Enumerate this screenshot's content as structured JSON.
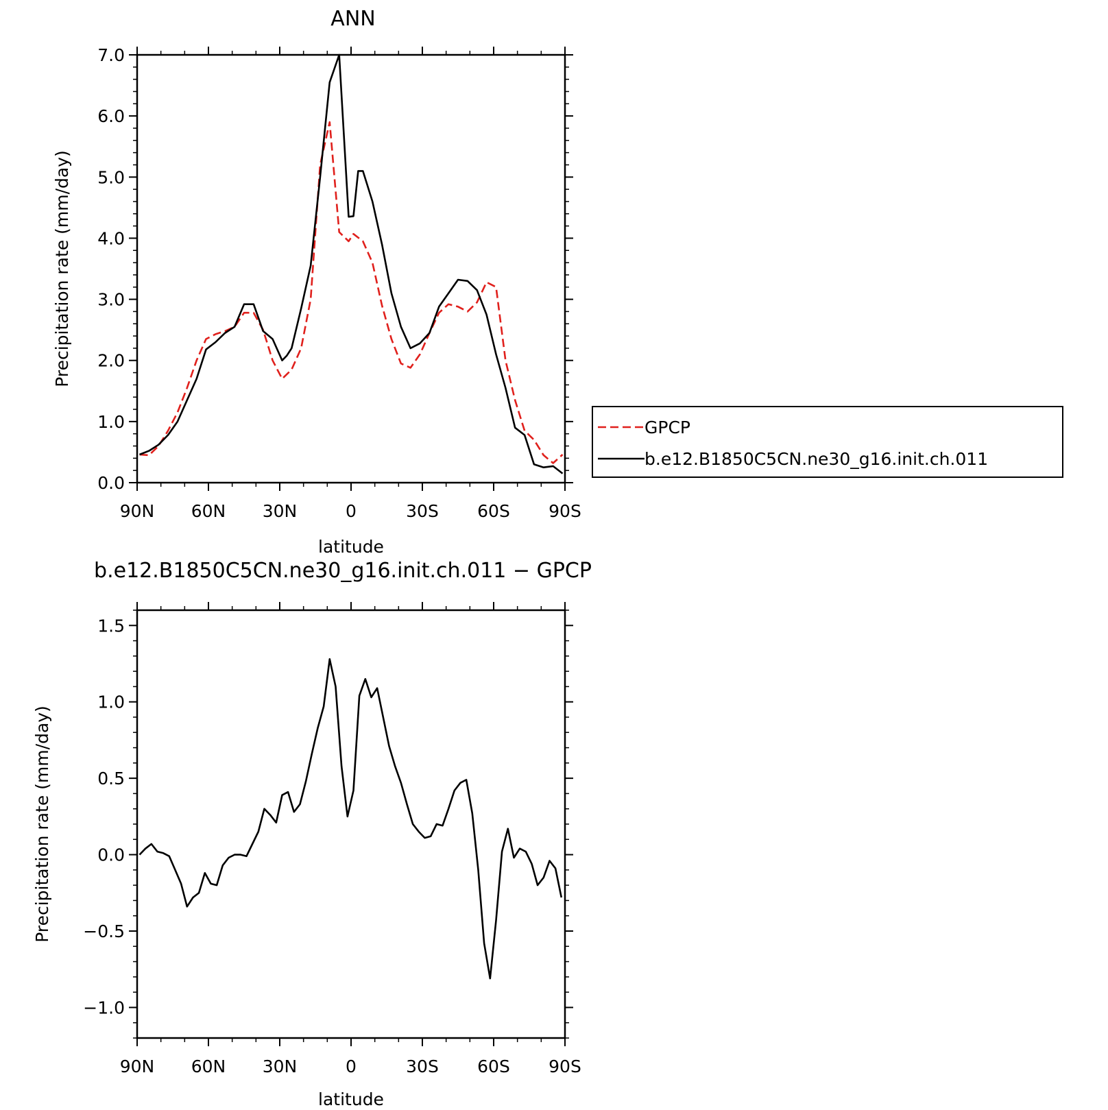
{
  "chart_data": [
    {
      "type": "line",
      "title": "ANN",
      "xlabel": "latitude",
      "ylabel": "Precipitation rate (mm/day)",
      "xlim": [
        90,
        -90
      ],
      "ylim": [
        0.0,
        7.0
      ],
      "x_ticks": [
        {
          "value": 90,
          "label": "90N"
        },
        {
          "value": 60,
          "label": "60N"
        },
        {
          "value": 30,
          "label": "30N"
        },
        {
          "value": 0,
          "label": "0"
        },
        {
          "value": -30,
          "label": "30S"
        },
        {
          "value": -60,
          "label": "60S"
        },
        {
          "value": -90,
          "label": "90S"
        }
      ],
      "y_ticks": [
        {
          "value": 0.0,
          "label": "0.0"
        },
        {
          "value": 1.0,
          "label": "1.0"
        },
        {
          "value": 2.0,
          "label": "2.0"
        },
        {
          "value": 3.0,
          "label": "3.0"
        },
        {
          "value": 4.0,
          "label": "4.0"
        },
        {
          "value": 5.0,
          "label": "5.0"
        },
        {
          "value": 6.0,
          "label": "6.0"
        },
        {
          "value": 7.0,
          "label": "7.0"
        }
      ],
      "legend_position": "right",
      "series": [
        {
          "name": "GPCP",
          "color": "#e0201c",
          "style": "dashed",
          "x": [
            89,
            85,
            81,
            77,
            73,
            69,
            65,
            61,
            57,
            53,
            49,
            45,
            41,
            37,
            33,
            29,
            25,
            21,
            17,
            13,
            9,
            5,
            1,
            -1,
            -5,
            -9,
            -13,
            -17,
            -21,
            -25,
            -29,
            -33,
            -37,
            -41,
            -45,
            -49,
            -53,
            -57,
            -61,
            -65,
            -69,
            -73,
            -77,
            -81,
            -85,
            -89
          ],
          "values": [
            0.46,
            0.45,
            0.6,
            0.85,
            1.15,
            1.55,
            2.0,
            2.35,
            2.43,
            2.48,
            2.55,
            2.78,
            2.78,
            2.5,
            2.0,
            1.7,
            1.85,
            2.2,
            3.0,
            5.2,
            5.9,
            4.1,
            3.95,
            4.07,
            3.95,
            3.6,
            2.9,
            2.35,
            1.95,
            1.88,
            2.1,
            2.45,
            2.78,
            2.92,
            2.88,
            2.8,
            2.95,
            3.28,
            3.2,
            2.0,
            1.35,
            0.85,
            0.7,
            0.45,
            0.32,
            0.46
          ]
        },
        {
          "name": "b.e12.B1850C5CN.ne30_g16.init.ch.011",
          "color": "#000000",
          "style": "solid",
          "x": [
            89,
            85,
            81,
            77,
            73,
            69,
            65,
            61,
            57,
            53,
            49,
            45,
            41,
            37,
            33,
            29,
            27,
            25,
            21,
            17,
            13,
            9,
            5,
            1,
            -1,
            -3,
            -5,
            -9,
            -13,
            -17,
            -21,
            -25,
            -29,
            -33,
            -37,
            -41,
            -45,
            -49,
            -53,
            -57,
            -61,
            -65,
            -69,
            -73,
            -77,
            -81,
            -85,
            -89
          ],
          "values": [
            0.46,
            0.52,
            0.62,
            0.78,
            1.0,
            1.35,
            1.7,
            2.18,
            2.3,
            2.45,
            2.55,
            2.92,
            2.92,
            2.48,
            2.35,
            2.0,
            2.08,
            2.2,
            2.85,
            3.55,
            5.0,
            6.55,
            7.0,
            4.35,
            4.36,
            5.1,
            5.1,
            4.6,
            3.9,
            3.1,
            2.55,
            2.2,
            2.28,
            2.45,
            2.88,
            3.1,
            3.32,
            3.3,
            3.15,
            2.75,
            2.1,
            1.55,
            0.9,
            0.78,
            0.3,
            0.25,
            0.27,
            0.15
          ]
        }
      ]
    },
    {
      "type": "line",
      "title": "b.e12.B1850C5CN.ne30_g16.init.ch.011 − GPCP",
      "xlabel": "latitude",
      "ylabel": "Precipitation rate (mm/day)",
      "xlim": [
        90,
        -90
      ],
      "ylim": [
        -1.2,
        1.6
      ],
      "x_ticks": [
        {
          "value": 90,
          "label": "90N"
        },
        {
          "value": 60,
          "label": "60N"
        },
        {
          "value": 30,
          "label": "30N"
        },
        {
          "value": 0,
          "label": "0"
        },
        {
          "value": -30,
          "label": "30S"
        },
        {
          "value": -60,
          "label": "60S"
        },
        {
          "value": -90,
          "label": "90S"
        }
      ],
      "y_ticks": [
        {
          "value": -1.0,
          "label": "−1.0"
        },
        {
          "value": -0.5,
          "label": "−0.5"
        },
        {
          "value": 0.0,
          "label": "0.0"
        },
        {
          "value": 0.5,
          "label": "0.5"
        },
        {
          "value": 1.0,
          "label": "1.0"
        },
        {
          "value": 1.5,
          "label": "1.5"
        }
      ],
      "series": [
        {
          "color": "#000000",
          "style": "solid",
          "x": [
            89,
            86.5,
            84,
            81.5,
            79,
            76.5,
            74,
            71.5,
            69,
            66.5,
            64,
            61.5,
            59,
            56.5,
            54,
            51.5,
            49,
            46.5,
            44,
            41.5,
            39,
            36.5,
            34,
            31.5,
            29,
            26.5,
            24,
            21.5,
            19,
            16.5,
            14,
            11.5,
            9,
            6.5,
            4,
            1.5,
            -1,
            -3.5,
            -6,
            -8.5,
            -11,
            -13.5,
            -16,
            -18.5,
            -21,
            -23.5,
            -26,
            -28.5,
            -31,
            -33.5,
            -36,
            -38.5,
            -41,
            -43.5,
            -46,
            -48.5,
            -51,
            -53.5,
            -56,
            -58.5,
            -61,
            -63.5,
            -66,
            -68.5,
            -71,
            -73.5,
            -76,
            -78.5,
            -81,
            -83.5,
            -86,
            -88.5
          ],
          "values": [
            0.0,
            0.04,
            0.07,
            0.02,
            0.01,
            -0.01,
            -0.1,
            -0.19,
            -0.34,
            -0.28,
            -0.25,
            -0.12,
            -0.19,
            -0.2,
            -0.07,
            -0.02,
            0.0,
            0.0,
            -0.01,
            0.07,
            0.15,
            0.3,
            0.26,
            0.21,
            0.39,
            0.41,
            0.28,
            0.33,
            0.48,
            0.66,
            0.83,
            0.97,
            1.28,
            1.1,
            0.58,
            0.25,
            0.42,
            1.04,
            1.15,
            1.03,
            1.09,
            0.9,
            0.71,
            0.58,
            0.47,
            0.33,
            0.2,
            0.15,
            0.11,
            0.12,
            0.2,
            0.19,
            0.3,
            0.42,
            0.47,
            0.49,
            0.27,
            -0.1,
            -0.58,
            -0.81,
            -0.43,
            0.02,
            0.17,
            -0.02,
            0.04,
            0.02,
            -0.06,
            -0.2,
            -0.15,
            -0.04,
            -0.09,
            -0.28
          ]
        }
      ]
    }
  ],
  "legend": {
    "items": [
      {
        "label": "GPCP",
        "color": "#e0201c",
        "style": "dashed"
      },
      {
        "label": "b.e12.B1850C5CN.ne30_g16.init.ch.011",
        "color": "#000000",
        "style": "solid"
      }
    ]
  }
}
